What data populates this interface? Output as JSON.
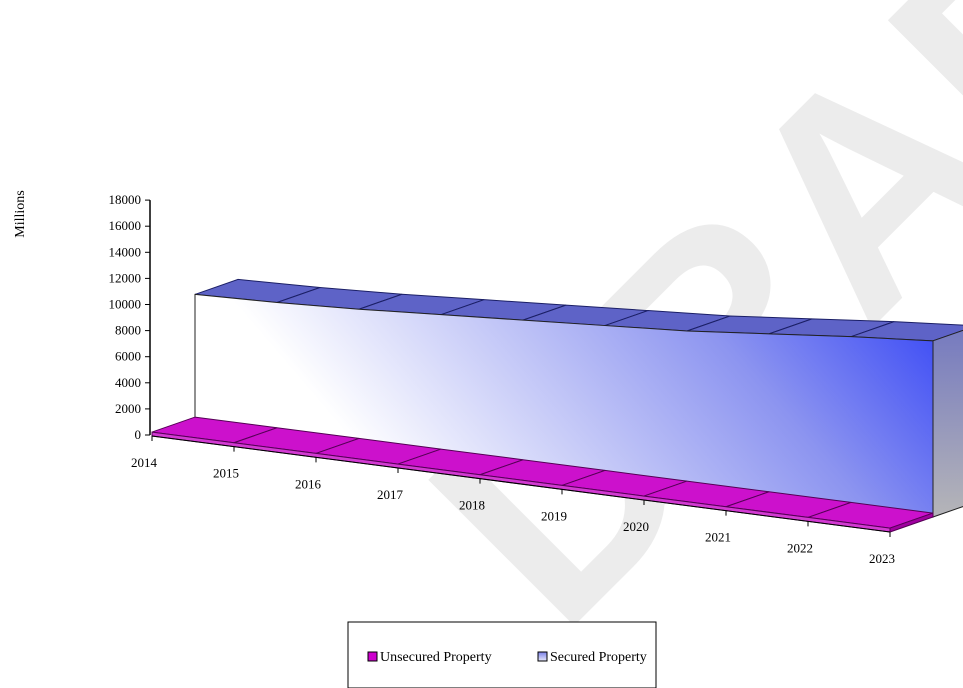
{
  "chart_data": {
    "type": "area",
    "subtype": "3d-area",
    "title": "",
    "xlabel": "",
    "ylabel": "Millions",
    "ylim": [
      0,
      18000
    ],
    "yticks": [
      0,
      2000,
      4000,
      6000,
      8000,
      10000,
      12000,
      14000,
      16000,
      18000
    ],
    "x": [
      "2014",
      "2015",
      "2016",
      "2017",
      "2018",
      "2019",
      "2020",
      "2021",
      "2022",
      "2023"
    ],
    "series": [
      {
        "name": "Unsecured Property",
        "color": "#cc00cc",
        "values": [
          300,
          300,
          300,
          300,
          300,
          300,
          300,
          300,
          300,
          300
        ]
      },
      {
        "name": "Secured Property",
        "color": "#0000ff",
        "values": [
          9700,
          9900,
          10200,
          10600,
          11000,
          11400,
          11800,
          12400,
          13000,
          13500
        ]
      }
    ],
    "legend_position": "bottom",
    "grid": false
  },
  "watermark": {
    "text": "DRAFT"
  }
}
